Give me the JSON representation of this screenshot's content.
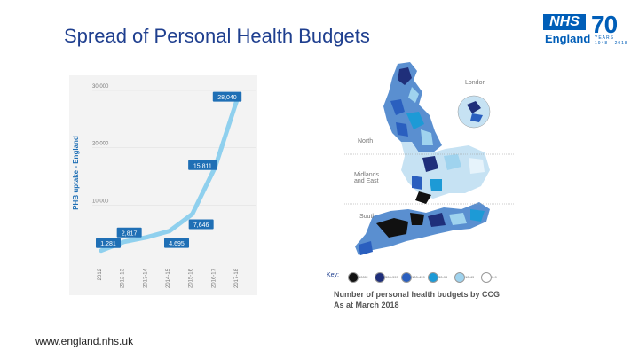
{
  "slide": {
    "title": "Spread of Personal Health Budgets",
    "footer": "www.england.nhs.uk"
  },
  "logo": {
    "nhs": "NHS",
    "england": "England",
    "seventy": "70",
    "years_text": "YEARS",
    "years_range": "1948 - 2018",
    "brand_color": "#005eb8"
  },
  "chart_data": {
    "type": "line",
    "ylabel": "PHB uptake - England",
    "categories": [
      "2012",
      "2012-13",
      "2013-14",
      "2014-15",
      "2015-16",
      "2016-17",
      "2017-18"
    ],
    "values": [
      1281,
      2817,
      3600,
      4695,
      7646,
      15811,
      28040
    ],
    "data_labels": [
      {
        "category": "2012",
        "text": "1,281"
      },
      {
        "category": "2012-13",
        "text": "2,817"
      },
      {
        "category": "2014-15",
        "text": "4,695"
      },
      {
        "category": "2015-16",
        "text": "7,646"
      },
      {
        "category": "2016-17",
        "text": "15,811"
      },
      {
        "category": "2017-18",
        "text": "28,040"
      }
    ],
    "y_ticks": [
      "10,000",
      "20,000",
      "30,000"
    ],
    "ylim": [
      0,
      30000
    ],
    "grid": false,
    "line_color": "#8fd0ee",
    "label_color": "#1f6fb5"
  },
  "map": {
    "regions": [
      "London",
      "North",
      "Midlands and East",
      "South"
    ],
    "key_label": "Key:",
    "key_items": [
      "1000+",
      "500-999",
      "100-499",
      "50-99",
      "10-49",
      "0-9"
    ],
    "key_colors": [
      "#111111",
      "#1f2f7a",
      "#2a5fbf",
      "#1d9ad6",
      "#9fd3ee",
      "#ffffff"
    ],
    "caption_line1": "Number of personal health budgets by CCG",
    "caption_line2": "As at March 2018"
  }
}
